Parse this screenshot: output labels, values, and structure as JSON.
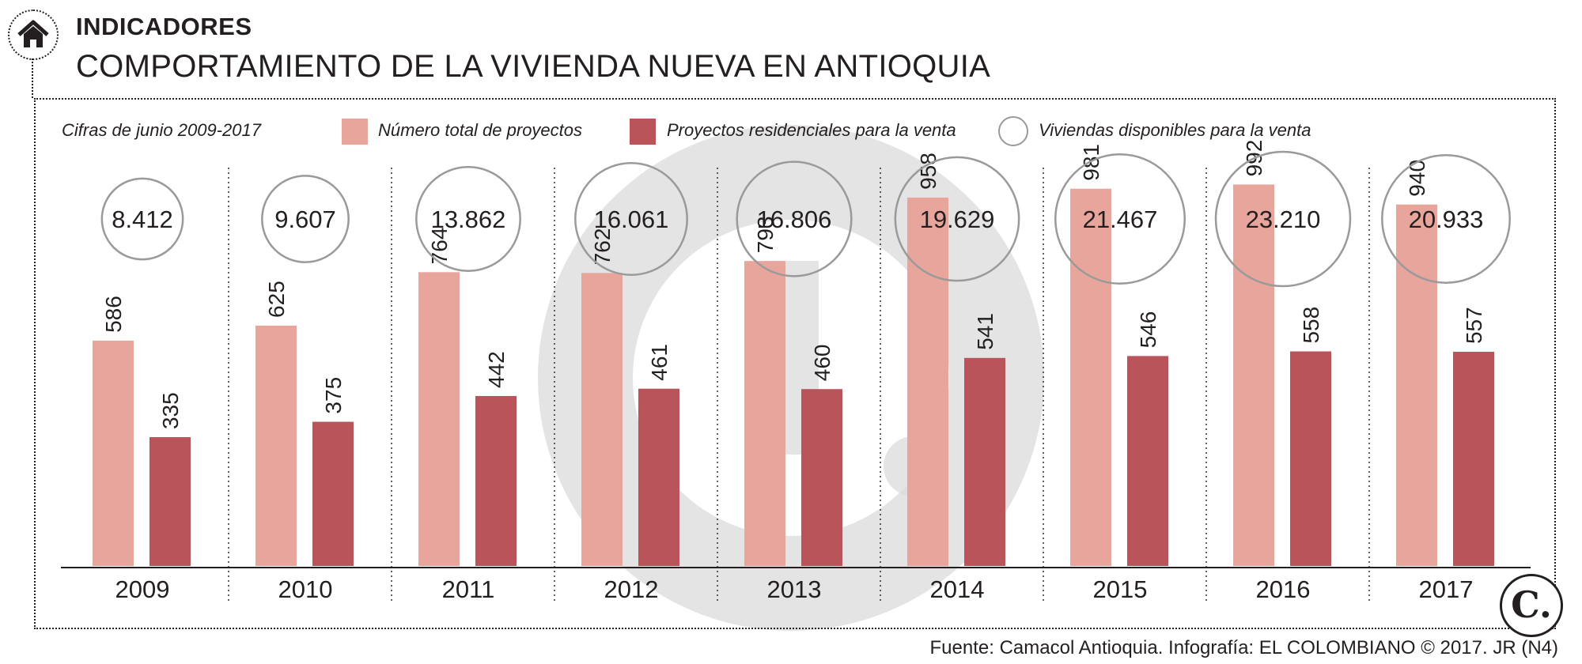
{
  "header": {
    "kicker": "INDICADORES",
    "title": "COMPORTAMIENTO DE LA VIVIENDA NUEVA EN ANTIOQUIA"
  },
  "legend": {
    "note": "Cifras de junio 2009-2017",
    "items": [
      {
        "label": "Número total de proyectos",
        "color": "#e8a59c"
      },
      {
        "label": "Proyectos residenciales para la venta",
        "color": "#b9555a"
      },
      {
        "label": "Viviendas disponibles para la venta",
        "shape": "circle",
        "color": "#9a9a9a"
      }
    ]
  },
  "footer": {
    "source": "Fuente: Camacol Antioquia. Infografía: EL COLOMBIANO © 2017. JR (N4)",
    "logo": "C."
  },
  "colors": {
    "series_light": "#e8a59c",
    "series_dark": "#b9555a",
    "circle": "#9a9a9a",
    "watermark": "#d9d9da",
    "text": "#231f20"
  },
  "icons": [
    "home-icon",
    "colombiano-logo-icon",
    "watermark-c-icon"
  ],
  "chart_data": {
    "type": "bar",
    "categories": [
      "2009",
      "2010",
      "2011",
      "2012",
      "2013",
      "2014",
      "2015",
      "2016",
      "2017"
    ],
    "series": [
      {
        "name": "Número total de proyectos",
        "values": [
          586,
          625,
          764,
          762,
          793,
          958,
          981,
          992,
          940
        ]
      },
      {
        "name": "Proyectos residenciales para la venta",
        "values": [
          335,
          375,
          442,
          461,
          460,
          541,
          546,
          558,
          557
        ]
      }
    ],
    "circles": {
      "name": "Viviendas disponibles para la venta",
      "values": [
        8412,
        9607,
        13862,
        16061,
        16806,
        19629,
        21467,
        23210,
        20933
      ],
      "labels": [
        "8.412",
        "9.607",
        "13.862",
        "16.061",
        "16.806",
        "19.629",
        "21.467",
        "23.210",
        "20.933"
      ]
    },
    "ylim": [
      0,
      1100
    ],
    "xlabel": "",
    "ylabel": "",
    "legend_position": "top"
  }
}
